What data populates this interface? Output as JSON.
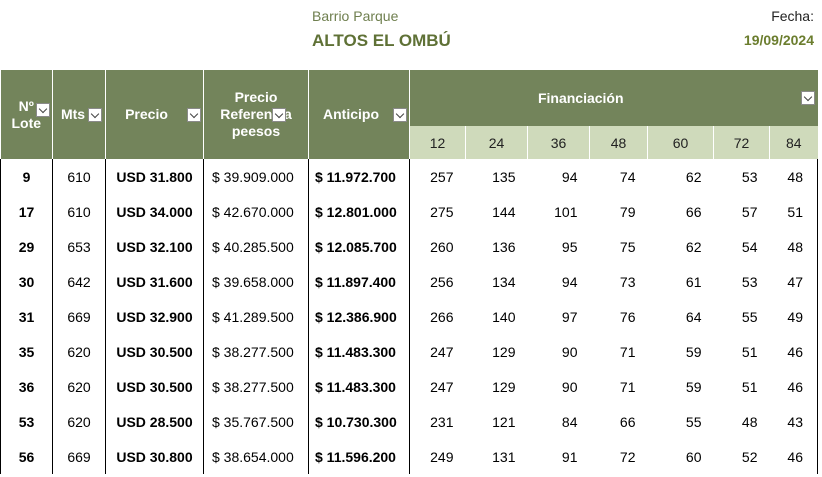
{
  "header": {
    "subtitle": "Barrio Parque",
    "title": "ALTOS EL OMBÚ",
    "date_label": "Fecha:",
    "date_value": "19/09/2024"
  },
  "columns": {
    "lote": [
      "Nº",
      "Lote"
    ],
    "mts": "Mts",
    "precio": "Precio",
    "referencia": [
      "Precio",
      "Referencia",
      "peesos"
    ],
    "anticipo": "Anticipo",
    "financiacion": "Financiación",
    "cuotas": [
      "12",
      "24",
      "36",
      "48",
      "60",
      "72",
      "84"
    ]
  },
  "rows": [
    {
      "lote": "9",
      "mts": "610",
      "precio": "USD 31.800",
      "referencia": "$ 39.909.000",
      "anticipo": "$ 11.972.700",
      "cuotas": [
        "257",
        "135",
        "94",
        "74",
        "62",
        "53",
        "48"
      ]
    },
    {
      "lote": "17",
      "mts": "610",
      "precio": "USD 34.000",
      "referencia": "$ 42.670.000",
      "anticipo": "$ 12.801.000",
      "cuotas": [
        "275",
        "144",
        "101",
        "79",
        "66",
        "57",
        "51"
      ]
    },
    {
      "lote": "29",
      "mts": "653",
      "precio": "USD 32.100",
      "referencia": "$ 40.285.500",
      "anticipo": "$ 12.085.700",
      "cuotas": [
        "260",
        "136",
        "95",
        "75",
        "62",
        "54",
        "48"
      ]
    },
    {
      "lote": "30",
      "mts": "642",
      "precio": "USD 31.600",
      "referencia": "$ 39.658.000",
      "anticipo": "$ 11.897.400",
      "cuotas": [
        "256",
        "134",
        "94",
        "73",
        "61",
        "53",
        "47"
      ]
    },
    {
      "lote": "31",
      "mts": "669",
      "precio": "USD 32.900",
      "referencia": "$ 41.289.500",
      "anticipo": "$ 12.386.900",
      "cuotas": [
        "266",
        "140",
        "97",
        "76",
        "64",
        "55",
        "49"
      ]
    },
    {
      "lote": "35",
      "mts": "620",
      "precio": "USD 30.500",
      "referencia": "$ 38.277.500",
      "anticipo": "$ 11.483.300",
      "cuotas": [
        "247",
        "129",
        "90",
        "71",
        "59",
        "51",
        "46"
      ]
    },
    {
      "lote": "36",
      "mts": "620",
      "precio": "USD 30.500",
      "referencia": "$ 38.277.500",
      "anticipo": "$ 11.483.300",
      "cuotas": [
        "247",
        "129",
        "90",
        "71",
        "59",
        "51",
        "46"
      ]
    },
    {
      "lote": "53",
      "mts": "620",
      "precio": "USD 28.500",
      "referencia": "$ 35.767.500",
      "anticipo": "$ 10.730.300",
      "cuotas": [
        "231",
        "121",
        "84",
        "66",
        "55",
        "48",
        "43"
      ]
    },
    {
      "lote": "56",
      "mts": "669",
      "precio": "USD 30.800",
      "referencia": "$ 38.654.000",
      "anticipo": "$ 11.596.200",
      "cuotas": [
        "249",
        "131",
        "91",
        "72",
        "60",
        "52",
        "46"
      ]
    }
  ],
  "colors": {
    "header_bg": "#73845b",
    "subheader_bg": "#cfdabb",
    "title": "#5f7136",
    "date": "#6b7d2e"
  }
}
